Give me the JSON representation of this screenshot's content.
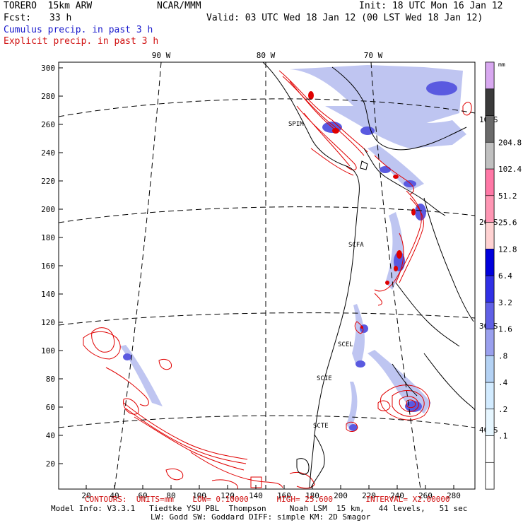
{
  "header": {
    "model": "TORERO  15km ARW",
    "center": "NCAR/MMM",
    "init": "Init: 18 UTC Mon 16 Jan 12",
    "fcst_label": "Fcst:",
    "fcst_value": "33 h",
    "valid": "Valid: 03 UTC Wed 18 Jan 12 (00 LST Wed 18 Jan 12)",
    "line_blue": "Cumulus precip. in past 3 h",
    "line_red": "Explicit precip. in past 3 h"
  },
  "map": {
    "lon_labels": [
      "90 W",
      "80 W",
      "70 W"
    ],
    "lat_labels": [
      "10 S",
      "20 S",
      "30 S",
      "40 S"
    ],
    "y_ticks": [
      "20",
      "40",
      "60",
      "80",
      "100",
      "120",
      "140",
      "160",
      "180",
      "200",
      "220",
      "240",
      "260",
      "280",
      "300"
    ],
    "x_ticks": [
      "20",
      "40",
      "60",
      "80",
      "100",
      "120",
      "140",
      "160",
      "180",
      "200",
      "220",
      "240",
      "260",
      "280"
    ],
    "stations": [
      "SPIM",
      "SCFA",
      "SCEL",
      "SCIE",
      "SCTE"
    ],
    "colors": {
      "cumulus": "#4b4bdc",
      "explicit": "#e00000",
      "land": "#000000",
      "grid": "#000000"
    }
  },
  "colorbar": {
    "unit": "mm",
    "levels": [
      ".1",
      ".2",
      ".4",
      ".8",
      "1.6",
      "3.2",
      "6.4",
      "12.8",
      "25.6",
      "51.2",
      "102.4",
      "204.8"
    ],
    "colors": [
      "#ffffff",
      "#ffffff",
      "#e6f6ff",
      "#d2ebff",
      "#b4d2f4",
      "#9aa0ee",
      "#6060e6",
      "#3030e6",
      "#0000dc",
      "#ffd2d2",
      "#ff96b4",
      "#ff78a6",
      "#c0c0c0",
      "#6a6a6a",
      "#3a3a3a",
      "#d8a8f0"
    ]
  },
  "footer": {
    "contours": "CONTOURS:  UNITS=mm    LOW= 0.10000      HIGH= 25.600       INTERVAL= X2.00000",
    "model_info": "Model Info: V3.3.1   Tiedtke YSU PBL  Thompson     Noah LSM  15 km,   44 levels,   51 sec",
    "physics": "LW: Godd SW: Goddard DIFF: simple KM: 2D Smagor"
  }
}
